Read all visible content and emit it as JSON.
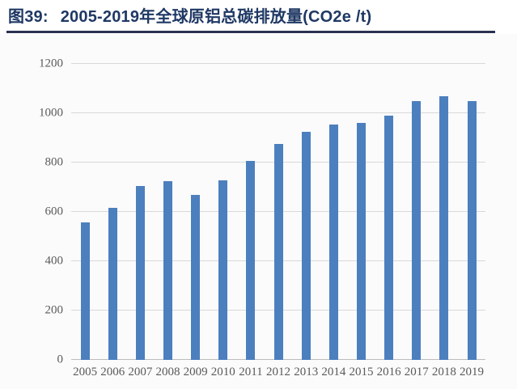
{
  "header": {
    "figure_label": "图39:",
    "title": "2005-2019年全球原铝总碳排放量(CO2e /t)"
  },
  "colors": {
    "bar": "#4c7fbe",
    "title_text": "#1f3864",
    "header_rule": "#2a3150",
    "gridline": "#d9d9d9",
    "axis_line": "#bdbdbd",
    "tick_text": "#5a5a5a",
    "panel_background": "#fbfbfb"
  },
  "chart_data": {
    "type": "bar",
    "title": "图39: 2005-2019年全球原铝总碳排放量(CO2e /t)",
    "categories": [
      "2005",
      "2006",
      "2007",
      "2008",
      "2009",
      "2010",
      "2011",
      "2012",
      "2013",
      "2014",
      "2015",
      "2016",
      "2017",
      "2018",
      "2019"
    ],
    "values": [
      556,
      618,
      706,
      725,
      670,
      728,
      806,
      876,
      925,
      955,
      960,
      990,
      1050,
      1068,
      1050
    ],
    "xlabel": "",
    "ylabel": "",
    "ylim": [
      0,
      1200
    ],
    "y_ticks": [
      0,
      200,
      400,
      600,
      800,
      1000,
      1200
    ],
    "grid": true,
    "legend": false,
    "legend_position": "none"
  }
}
